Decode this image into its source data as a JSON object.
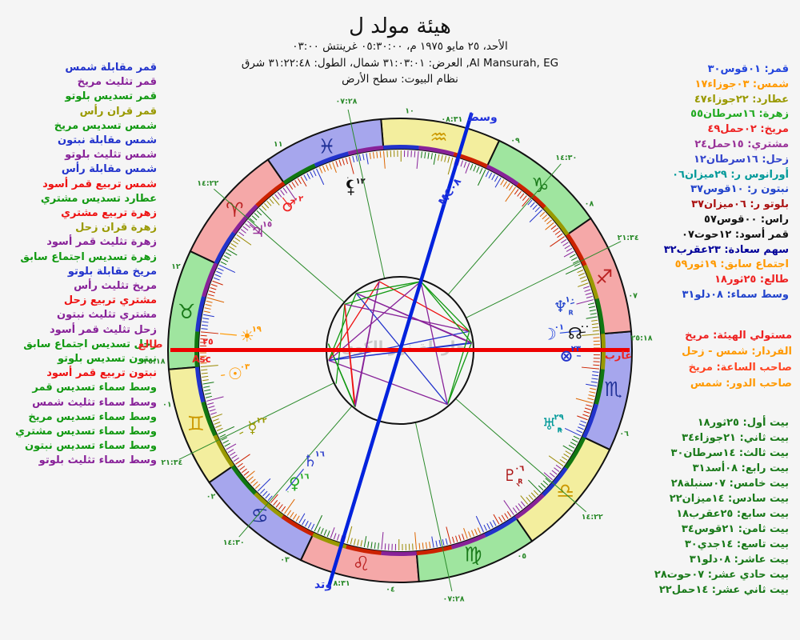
{
  "header": {
    "title": "هيئة مولد ل",
    "line1": "الأحد، ٢٥ مايو ١٩٧٥ م، ٠٥:٣٠:٠٠ غرينتش ٠٣:٠٠",
    "line2": "Al Mansurah, EG, العرض: ٣١:٠٣:٠١ شمال، الطول: ٣١:٢٢:٤٨ شرق",
    "line3": "نظام البيوت: سطح الأرض"
  },
  "watermark": "خارطة نور الكون",
  "aspects": {
    "type_colors": {
      "opp": "#2233cc",
      "tri": "#882299",
      "sex": "#119911",
      "squ": "#ee1111",
      "con": "#999900"
    },
    "items": [
      {
        "t": "قمر مقابلة شمس",
        "k": "opp"
      },
      {
        "t": "قمر تثليث مريخ",
        "k": "tri"
      },
      {
        "t": "قمر تسديس بلوتو",
        "k": "sex"
      },
      {
        "t": "قمر قران رأس",
        "k": "con"
      },
      {
        "t": "شمس تسديس مريخ",
        "k": "sex"
      },
      {
        "t": "شمس مقابلة نبتون",
        "k": "opp"
      },
      {
        "t": "شمس تثليث بلوتو",
        "k": "tri"
      },
      {
        "t": "شمس مقابلة رأس",
        "k": "opp"
      },
      {
        "t": "شمس تربيع قمر أسود",
        "k": "squ"
      },
      {
        "t": "عطارد تسديس مشتري",
        "k": "sex"
      },
      {
        "t": "زهرة تربيع مشتري",
        "k": "squ"
      },
      {
        "t": "زهرة قران زحل",
        "k": "con"
      },
      {
        "t": "زهرة تثليث قمر أسود",
        "k": "tri"
      },
      {
        "t": "زهرة تسديس اجتماع سابق",
        "k": "sex"
      },
      {
        "t": "مريخ مقابلة بلوتو",
        "k": "opp"
      },
      {
        "t": "مريخ تثليث رأس",
        "k": "tri"
      },
      {
        "t": "مشتري تربيع زحل",
        "k": "squ"
      },
      {
        "t": "مشتري تثليث نبتون",
        "k": "tri"
      },
      {
        "t": "زحل تثليث قمر أسود",
        "k": "tri"
      },
      {
        "t": "زحل تسديس اجتماع سابق",
        "k": "sex"
      },
      {
        "t": "نبتون تسديس بلوتو",
        "k": "sex"
      },
      {
        "t": "نبتون تربيع قمر أسود",
        "k": "squ"
      },
      {
        "t": "وسط سماء تسديس قمر",
        "k": "sex"
      },
      {
        "t": "وسط سماء تثليث شمس",
        "k": "tri"
      },
      {
        "t": "وسط سماء تسديس مريخ",
        "k": "sex"
      },
      {
        "t": "وسط سماء تسديس مشتري",
        "k": "sex"
      },
      {
        "t": "وسط سماء تسديس نبتون",
        "k": "sex"
      },
      {
        "t": "وسط سماء تثليث بلوتو",
        "k": "tri"
      }
    ]
  },
  "planet_list": {
    "items": [
      {
        "t": "قمر: ٠١قوس٣٠",
        "c": "#2244dd"
      },
      {
        "t": "شمس: ٠٣جوزاء١٧",
        "c": "#ff9900"
      },
      {
        "t": "عطارد: ٢٢جوزاء٤٧",
        "c": "#999900"
      },
      {
        "t": "زهرة: ١٦سرطان٥٥",
        "c": "#22aa22"
      },
      {
        "t": "مريخ: ٠٢حمل٤٩",
        "c": "#ee2222"
      },
      {
        "t": "مشتري: ١٥حمل٢٤",
        "c": "#993399"
      },
      {
        "t": "زحل: ١٦سرطان١٢",
        "c": "#3344cc"
      },
      {
        "t": "أورانوس ر: ٢٩ميزان٠٦",
        "c": "#009999"
      },
      {
        "t": "نبتون ر: ١٠قوس٣٧",
        "c": "#2244cc"
      },
      {
        "t": "بلوتو ر: ٠٦ميزان٣٧",
        "c": "#aa1111"
      },
      {
        "t": "راس: ٠٠قوس٥٧",
        "c": "#111111"
      },
      {
        "t": "قمر أسود: ١٢حوت٠٧",
        "c": "#111111"
      },
      {
        "t": "سهم سعادة: ٢٣عقرب٣٢",
        "c": "#000099"
      },
      {
        "t": "اجتماع سابق: ١٩ثور٥٩",
        "c": "#ff9900"
      },
      {
        "t": "طالع: ٢٥ثور١٨",
        "c": "#ee2222"
      },
      {
        "t": "وسط سماء: ٠٨دلو٣١",
        "c": "#2244cc"
      }
    ]
  },
  "rulers": {
    "items": [
      {
        "t": "مستولي الهيئة: مريخ",
        "c": "#ee2222"
      },
      {
        "t": "الفردار: شمس - زحل",
        "c": "#ff9900"
      },
      {
        "t": "صاحب الساعة: مريخ",
        "c": "#ff4422"
      },
      {
        "t": "صاحب الدور: شمس",
        "c": "#ff9900"
      }
    ]
  },
  "houses": {
    "color": "#1a7a1a",
    "items": [
      {
        "t": "بيت أول: ٢٥ثور١٨"
      },
      {
        "t": "بيت ثاني: ٢١جوزاء٣٤"
      },
      {
        "t": "بيت ثالث: ١٤سرطان٣٠"
      },
      {
        "t": "بيت رابع: ٠٨أسد٣١"
      },
      {
        "t": "بيت خامس: ٠٧سنبلة٢٨"
      },
      {
        "t": "بيت سادس: ١٤ميزان٢٢"
      },
      {
        "t": "بيت سابع: ٢٥عقرب١٨"
      },
      {
        "t": "بيت ثامن: ٢١قوس٣٤"
      },
      {
        "t": "بيت تاسع: ١٤جدي٣٠"
      },
      {
        "t": "بيت عاشر: ٠٨دلو٣١"
      },
      {
        "t": "بيت حادي عشر: ٠٧حوت٢٨"
      },
      {
        "t": "بيت ثاني عشر: ١٤حمل٢٢"
      }
    ]
  },
  "chart": {
    "asc_lon": 55.3,
    "labels": {
      "left": "طالع",
      "right": "غارب",
      "top": "وسط",
      "bottom": "وتد",
      "asc_line": "Asc",
      "asc_deg": "٢٥",
      "mc_line": "MC٠٨"
    },
    "axis_colors": {
      "horizon": "#ee0000",
      "meridian": "#0022dd",
      "label_red": "#ee2222",
      "label_blue": "#2233dd"
    },
    "cusp_color": "#2a8a2a",
    "element_fill": {
      "fire": "#f5a8a8",
      "earth": "#9fe59f",
      "air": "#f3ee9e",
      "water": "#a6a6ed"
    },
    "element_glyph": {
      "fire": "#bb2222",
      "earth": "#1a7a1a",
      "air": "#cc9900",
      "water": "#223399"
    },
    "signs": [
      {
        "name": "aries",
        "glyph": "♈",
        "element": "fire"
      },
      {
        "name": "taurus",
        "glyph": "♉",
        "element": "earth"
      },
      {
        "name": "gemini",
        "glyph": "♊",
        "element": "air"
      },
      {
        "name": "cancer",
        "glyph": "♋",
        "element": "water"
      },
      {
        "name": "leo",
        "glyph": "♌",
        "element": "fire"
      },
      {
        "name": "virgo",
        "glyph": "♍",
        "element": "earth"
      },
      {
        "name": "libra",
        "glyph": "♎",
        "element": "air"
      },
      {
        "name": "scorpio",
        "glyph": "♏",
        "element": "water"
      },
      {
        "name": "sagittarius",
        "glyph": "♐",
        "element": "fire"
      },
      {
        "name": "capricorn",
        "glyph": "♑",
        "element": "earth"
      },
      {
        "name": "aquarius",
        "glyph": "♒",
        "element": "air"
      },
      {
        "name": "pisces",
        "glyph": "♓",
        "element": "water"
      }
    ],
    "cusps": [
      {
        "lon": 55.3,
        "label": "٢٥:١٨",
        "num": "٠١"
      },
      {
        "lon": 81.567,
        "label": "٢١:٣٤",
        "num": "٠٢"
      },
      {
        "lon": 104.5,
        "label": "١٤:٣٠",
        "num": "٠٣"
      },
      {
        "lon": 128.517,
        "label": "٠٨:٣١",
        "num": "٠٤"
      },
      {
        "lon": 157.467,
        "label": "٠٧:٢٨",
        "num": "٠٥"
      },
      {
        "lon": 194.367,
        "label": "١٤:٢٢",
        "num": "٠٦"
      },
      {
        "lon": 235.3,
        "label": "٢٥:١٨",
        "num": "٠٧"
      },
      {
        "lon": 261.567,
        "label": "٢١:٣٤",
        "num": "٠٨"
      },
      {
        "lon": 284.5,
        "label": "١٤:٣٠",
        "num": "٠٩"
      },
      {
        "lon": 308.517,
        "label": "٠٨:٣١",
        "num": "١٠"
      },
      {
        "lon": 337.467,
        "label": "٠٧:٢٨",
        "num": "١١"
      },
      {
        "lon": 14.367,
        "label": "١٤:٢٢",
        "num": "١٢"
      }
    ],
    "planets": [
      {
        "id": "moon",
        "glyph": "☽",
        "lon": 241.5,
        "deg": "٠١",
        "c": "#2244dd",
        "r": 188
      },
      {
        "id": "sun",
        "glyph": "☉",
        "lon": 63.283,
        "deg": "٠٣",
        "c": "#ff9900",
        "r": 208
      },
      {
        "id": "mercury",
        "glyph": "☿",
        "lon": 82.783,
        "deg": "٢٢",
        "c": "#999900",
        "r": 208
      },
      {
        "id": "venus",
        "glyph": "♀",
        "lon": 106.917,
        "deg": "١٦",
        "c": "#22aa22",
        "r": 212
      },
      {
        "id": "mars",
        "glyph": "♂",
        "lon": 2.817,
        "deg": "٠٢",
        "c": "#ee2222",
        "r": 228
      },
      {
        "id": "jupiter",
        "glyph": "♃",
        "lon": 15.4,
        "deg": "١٥",
        "c": "#993399",
        "r": 232
      },
      {
        "id": "saturn",
        "glyph": "♄",
        "lon": 106.2,
        "deg": "١٦",
        "c": "#3344cc",
        "r": 178
      },
      {
        "id": "uranus",
        "glyph": "♅",
        "lon": 209.1,
        "deg": "٢٩",
        "c": "#009999",
        "r": 208,
        "retro": true
      },
      {
        "id": "neptune",
        "glyph": "♆",
        "lon": 250.617,
        "deg": "١٠",
        "c": "#2244cc",
        "r": 208,
        "retro": true
      },
      {
        "id": "pluto",
        "glyph": "♇",
        "lon": 186.617,
        "deg": "٠٦",
        "c": "#aa1111",
        "r": 208,
        "retro": true
      },
      {
        "id": "node",
        "glyph": "☊",
        "lon": 240.95,
        "deg": "٠٠",
        "c": "#111111",
        "r": 220
      },
      {
        "id": "lilith",
        "glyph": "lilith",
        "lon": 342.117,
        "deg": "١٢",
        "c": "#111111",
        "r": 212
      },
      {
        "id": "fortune",
        "glyph": "⊗",
        "lon": 233.533,
        "deg": "٢٣",
        "c": "#2233cc",
        "r": 208
      },
      {
        "id": "conj",
        "glyph": "☀",
        "lon": 49.983,
        "deg": "١٩",
        "c": "#ff9900",
        "r": 192
      }
    ],
    "aspect_pairs": [
      [
        "moon",
        "sun",
        "opp"
      ],
      [
        "moon",
        "mars",
        "tri"
      ],
      [
        "moon",
        "pluto",
        "sex"
      ],
      [
        "moon",
        "node",
        "con"
      ],
      [
        "sun",
        "mars",
        "sex"
      ],
      [
        "sun",
        "neptune",
        "opp"
      ],
      [
        "sun",
        "pluto",
        "tri"
      ],
      [
        "sun",
        "node",
        "opp"
      ],
      [
        "sun",
        "lilith",
        "squ"
      ],
      [
        "mercury",
        "jupiter",
        "sex"
      ],
      [
        "venus",
        "jupiter",
        "squ"
      ],
      [
        "venus",
        "saturn",
        "con"
      ],
      [
        "venus",
        "lilith",
        "tri"
      ],
      [
        "venus",
        "conj",
        "sex"
      ],
      [
        "mars",
        "pluto",
        "opp"
      ],
      [
        "mars",
        "node",
        "tri"
      ],
      [
        "jupiter",
        "saturn",
        "squ"
      ],
      [
        "jupiter",
        "neptune",
        "tri"
      ],
      [
        "saturn",
        "lilith",
        "tri"
      ],
      [
        "saturn",
        "conj",
        "sex"
      ],
      [
        "neptune",
        "pluto",
        "sex"
      ],
      [
        "neptune",
        "lilith",
        "squ"
      ],
      [
        "mc",
        "moon",
        "sex"
      ],
      [
        "mc",
        "sun",
        "tri"
      ],
      [
        "mc",
        "mars",
        "sex"
      ],
      [
        "mc",
        "jupiter",
        "sex"
      ],
      [
        "mc",
        "neptune",
        "sex"
      ],
      [
        "mc",
        "pluto",
        "tri"
      ]
    ]
  }
}
